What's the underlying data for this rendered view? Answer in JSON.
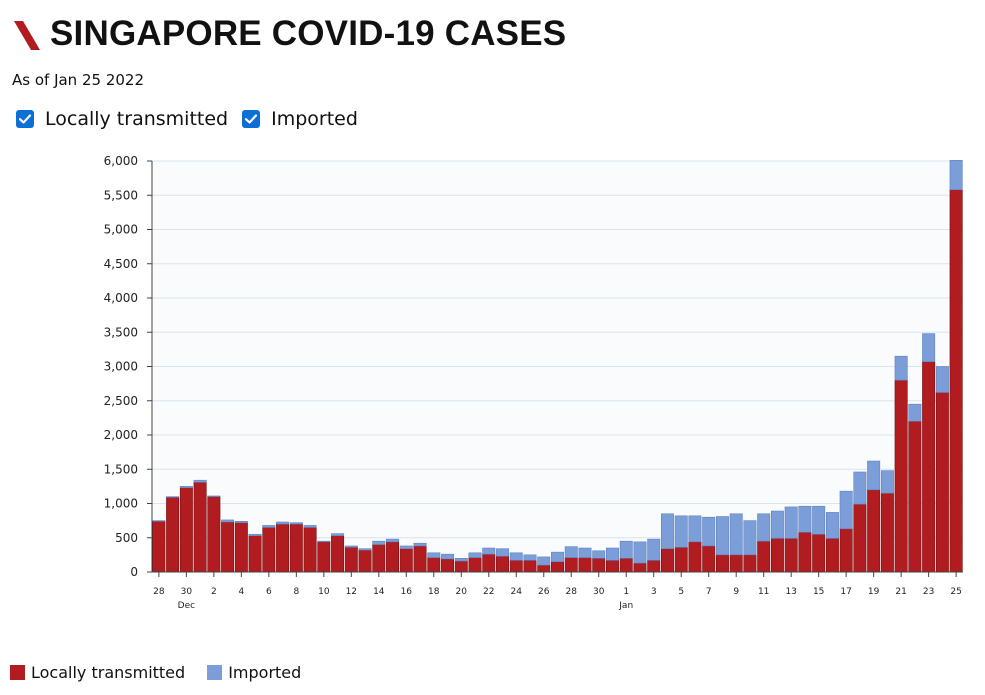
{
  "header": {
    "title": "SINGAPORE COVID-19 CASES",
    "subtitle": "As of Jan 25 2022"
  },
  "toggles": [
    {
      "label": "Locally transmitted",
      "checked": true
    },
    {
      "label": "Imported",
      "checked": true
    }
  ],
  "colors": {
    "local": "#b01c1f",
    "imported": "#7b9ed8",
    "checkbox": "#0b6fd6",
    "brand": "#b01c1f",
    "plot_bg": "#fafbfd",
    "grid": "#d6e4f4"
  },
  "legend": [
    {
      "label": "Locally transmitted",
      "color": "#b01c1f"
    },
    {
      "label": "Imported",
      "color": "#7b9ed8"
    }
  ],
  "chart_data": {
    "type": "bar",
    "stacked": true,
    "title": "SINGAPORE COVID-19 CASES",
    "xlabel": "",
    "ylabel": "",
    "ylim": [
      0,
      6000
    ],
    "yticks": [
      0,
      500,
      1000,
      1500,
      2000,
      2500,
      3000,
      3500,
      4000,
      4500,
      5000,
      5500,
      6000
    ],
    "grid": true,
    "legend_position": "bottom-left",
    "categories": [
      "Nov 28",
      "Nov 29",
      "Nov 30",
      "Dec 1",
      "Dec 2",
      "Dec 3",
      "Dec 4",
      "Dec 5",
      "Dec 6",
      "Dec 7",
      "Dec 8",
      "Dec 9",
      "Dec 10",
      "Dec 11",
      "Dec 12",
      "Dec 13",
      "Dec 14",
      "Dec 15",
      "Dec 16",
      "Dec 17",
      "Dec 18",
      "Dec 19",
      "Dec 20",
      "Dec 21",
      "Dec 22",
      "Dec 23",
      "Dec 24",
      "Dec 25",
      "Dec 26",
      "Dec 27",
      "Dec 28",
      "Dec 29",
      "Dec 30",
      "Dec 31",
      "Jan 1",
      "Jan 2",
      "Jan 3",
      "Jan 4",
      "Jan 5",
      "Jan 6",
      "Jan 7",
      "Jan 8",
      "Jan 9",
      "Jan 10",
      "Jan 11",
      "Jan 12",
      "Jan 13",
      "Jan 14",
      "Jan 15",
      "Jan 16",
      "Jan 17",
      "Jan 18",
      "Jan 19",
      "Jan 20",
      "Jan 21",
      "Jan 22",
      "Jan 23",
      "Jan 24",
      "Jan 25"
    ],
    "xtick_labels": [
      {
        "index": 0,
        "label": "28"
      },
      {
        "index": 2,
        "label": "30",
        "sub": "Dec"
      },
      {
        "index": 4,
        "label": "2"
      },
      {
        "index": 6,
        "label": "4"
      },
      {
        "index": 8,
        "label": "6"
      },
      {
        "index": 10,
        "label": "8"
      },
      {
        "index": 12,
        "label": "10"
      },
      {
        "index": 14,
        "label": "12"
      },
      {
        "index": 16,
        "label": "14"
      },
      {
        "index": 18,
        "label": "16"
      },
      {
        "index": 20,
        "label": "18"
      },
      {
        "index": 22,
        "label": "20"
      },
      {
        "index": 24,
        "label": "22"
      },
      {
        "index": 26,
        "label": "24"
      },
      {
        "index": 28,
        "label": "26"
      },
      {
        "index": 30,
        "label": "28"
      },
      {
        "index": 32,
        "label": "30"
      },
      {
        "index": 34,
        "label": "1",
        "sub": "Jan"
      },
      {
        "index": 36,
        "label": "3"
      },
      {
        "index": 38,
        "label": "5"
      },
      {
        "index": 40,
        "label": "7"
      },
      {
        "index": 42,
        "label": "9"
      },
      {
        "index": 44,
        "label": "11"
      },
      {
        "index": 46,
        "label": "13"
      },
      {
        "index": 48,
        "label": "15"
      },
      {
        "index": 50,
        "label": "17"
      },
      {
        "index": 52,
        "label": "19"
      },
      {
        "index": 54,
        "label": "21"
      },
      {
        "index": 56,
        "label": "23"
      },
      {
        "index": 58,
        "label": "25"
      }
    ],
    "series": [
      {
        "name": "Locally transmitted",
        "values": [
          740,
          1090,
          1230,
          1310,
          1100,
          730,
          720,
          530,
          650,
          700,
          700,
          650,
          440,
          530,
          360,
          320,
          400,
          440,
          340,
          380,
          210,
          190,
          160,
          210,
          260,
          230,
          170,
          170,
          100,
          150,
          210,
          210,
          200,
          170,
          200,
          130,
          170,
          340,
          360,
          440,
          380,
          250,
          250,
          250,
          450,
          490,
          490,
          580,
          550,
          490,
          630,
          990,
          1200,
          1150,
          2800,
          2200,
          3070,
          2620,
          5580
        ]
      },
      {
        "name": "Imported",
        "values": [
          10,
          10,
          20,
          30,
          10,
          30,
          20,
          20,
          30,
          30,
          20,
          30,
          10,
          30,
          20,
          20,
          50,
          40,
          40,
          40,
          70,
          70,
          40,
          70,
          90,
          110,
          110,
          80,
          120,
          140,
          160,
          140,
          110,
          180,
          250,
          310,
          310,
          510,
          460,
          380,
          420,
          560,
          600,
          500,
          400,
          400,
          460,
          380,
          410,
          380,
          550,
          470,
          420,
          330,
          350,
          250,
          410,
          380,
          430
        ]
      }
    ]
  }
}
